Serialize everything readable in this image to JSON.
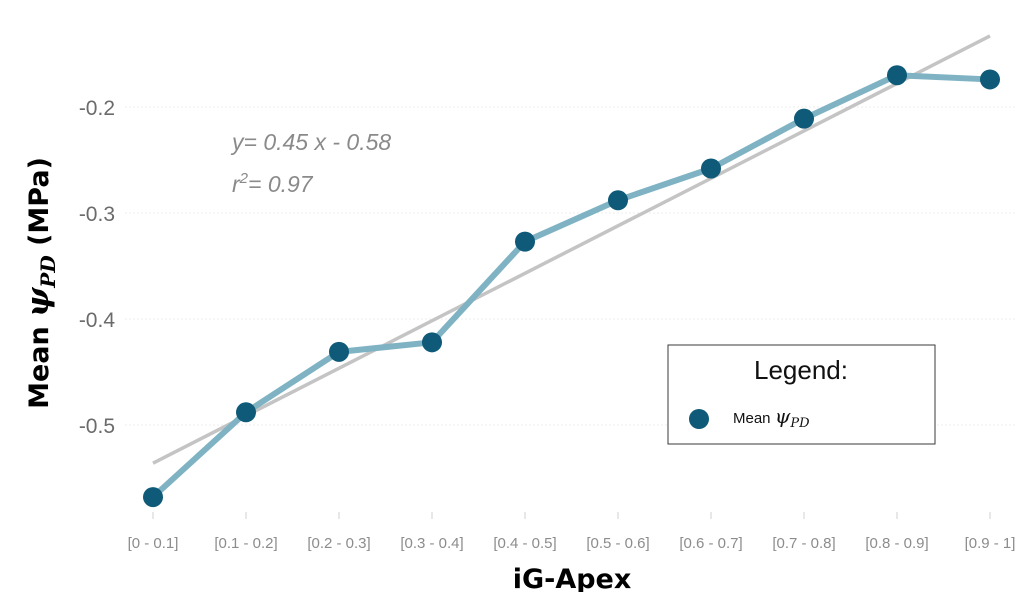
{
  "chart_data": {
    "type": "line",
    "categories": [
      "[0 - 0.1]",
      "[0.1 - 0.2]",
      "[0.2 - 0.3]",
      "[0.3 - 0.4]",
      "[0.4 - 0.5]",
      "[0.5 - 0.6]",
      "[0.6 - 0.7]",
      "[0.7 - 0.8]",
      "[0.8 - 0.9]",
      "[0.9 - 1]"
    ],
    "series": [
      {
        "name": "Mean ψPD",
        "values": [
          -0.568,
          -0.488,
          -0.431,
          -0.422,
          -0.327,
          -0.288,
          -0.258,
          -0.211,
          -0.17,
          -0.174
        ],
        "color": "#7fb3c4",
        "marker_color": "#0e5a78"
      }
    ],
    "trendline": {
      "equation": "y= 0.45 x - 0.58",
      "r2_prefix": "r",
      "r2_sup": "2",
      "r2_rest": "= 0.97",
      "start": -0.536,
      "end": -0.133,
      "color": "#c4c4c4"
    },
    "xlabel": "iG-Apex",
    "ylabel": {
      "prefix": "Mean ",
      "symbol": "ψ",
      "subscript": "PD",
      "suffix": " (MPa)"
    },
    "y_ticks": [
      "-0.2",
      "-0.3",
      "-0.4",
      "-0.5"
    ],
    "y_tick_values": [
      -0.2,
      -0.3,
      -0.4,
      -0.5
    ],
    "grid": true,
    "legend": {
      "title": "Legend:",
      "item_prefix": "Mean ",
      "item_symbol": "ψ",
      "item_subscript": "PD",
      "placement": "right"
    }
  }
}
